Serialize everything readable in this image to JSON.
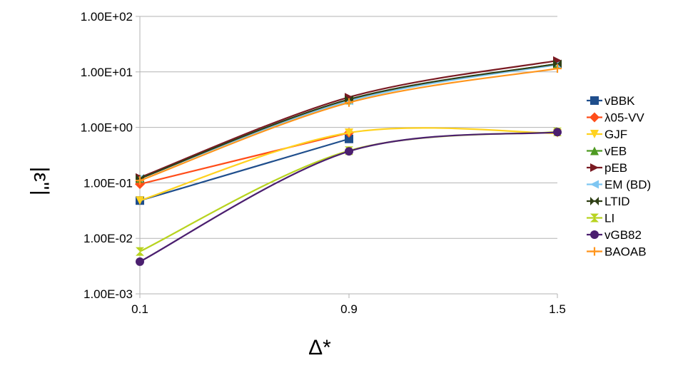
{
  "chart_data": {
    "type": "line",
    "xlabel": "Δ*",
    "ylabel": "|ε''|",
    "yscale": "log",
    "ylim": [
      0.001,
      100
    ],
    "x_categories": [
      "0.1",
      "0.9",
      "1.5"
    ],
    "y_tick_labels": [
      "1.00E-03",
      "1.00E-02",
      "1.00E-01",
      "1.00E+00",
      "1.00E+01",
      "1.00E+02"
    ],
    "grid": "horizontal",
    "legend_position": "right",
    "series": [
      {
        "name": "vBBK",
        "color": "#1f4e8c",
        "marker": "square",
        "values": [
          0.048,
          0.62,
          null
        ]
      },
      {
        "name": "λ05-VV",
        "color": "#ff4d1a",
        "marker": "diamond",
        "values": [
          0.095,
          0.8,
          null
        ]
      },
      {
        "name": "GJF",
        "color": "#ffd21f",
        "marker": "triangle-down",
        "values": [
          0.048,
          0.8,
          0.78
        ]
      },
      {
        "name": "vEB",
        "color": "#4e9a22",
        "marker": "triangle-up",
        "values": [
          0.12,
          3.1,
          14
        ]
      },
      {
        "name": "pEB",
        "color": "#7a1a22",
        "marker": "triangle-right",
        "values": [
          0.125,
          3.5,
          16
        ]
      },
      {
        "name": "EM (BD)",
        "color": "#7ec6f2",
        "marker": "triangle-left",
        "values": [
          0.12,
          3.0,
          13.5
        ]
      },
      {
        "name": "LTID",
        "color": "#2f3f15",
        "marker": "bowtie",
        "values": [
          0.12,
          3.2,
          14
        ]
      },
      {
        "name": "LI",
        "color": "#b8d31f",
        "marker": "hourglass",
        "values": [
          0.0058,
          0.38,
          0.83
        ]
      },
      {
        "name": "vGB82",
        "color": "#4b1f6f",
        "marker": "circle",
        "values": [
          0.0038,
          0.37,
          0.82
        ]
      },
      {
        "name": "BAOAB",
        "color": "#ff951c",
        "marker": "plus",
        "values": [
          0.11,
          2.8,
          11.5
        ]
      }
    ]
  }
}
